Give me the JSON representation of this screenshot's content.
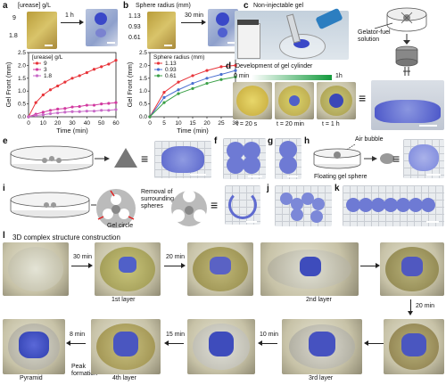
{
  "panels": {
    "a": "a",
    "b": "b",
    "c": "c",
    "d": "d",
    "e": "e",
    "f": "f",
    "g": "g",
    "h": "h",
    "i": "i",
    "j": "j",
    "k": "k",
    "l": "l"
  },
  "a": {
    "header": "[urease] g/L",
    "vals": [
      "9",
      "1.8"
    ],
    "time": "1 h"
  },
  "b": {
    "header": "Sphere radius (mm)",
    "vals": [
      "1.13",
      "0.93",
      "0.61"
    ],
    "time": "30 min"
  },
  "c": {
    "title": "Non-injectable gel",
    "solution": "Gelator-fuel\nsolution",
    "solution_l1": "Gelator-fuel",
    "solution_l2": "solution"
  },
  "d": {
    "title": "Development of gel cylinder",
    "start": "0 min",
    "end": "1h",
    "t1": "t = 20 s",
    "t2": "t = 20 min",
    "t3": "t = 1 h"
  },
  "h": {
    "air": "Air bubble",
    "floating": "Floating gel sphere"
  },
  "i": {
    "removal_l1": "Removal of",
    "removal_l2": "surrounding",
    "removal_l3": "spheres",
    "circle": "Gel circle"
  },
  "l": {
    "title": "3D complex structure construction",
    "t1": "30 min",
    "t2": "20 min",
    "t3": "20 min",
    "t4": "15 min",
    "t5": "10 min",
    "t6": "8 min",
    "layer1": "1st layer",
    "layer2": "2nd layer",
    "layer3": "3rd layer",
    "layer4": "4th layer",
    "pyramid": "Pyramid",
    "peak1": "Peak",
    "peak2": "formation"
  },
  "equiv": "≡",
  "chart_data": [
    {
      "type": "line",
      "xlabel": "Time (min)",
      "ylabel": "Gel Front (mm)",
      "xlim": [
        0,
        60
      ],
      "ylim": [
        0,
        2.5
      ],
      "xticks": [
        "0",
        "10",
        "20",
        "30",
        "40",
        "50",
        "60"
      ],
      "yticks": [
        "0.0",
        "0.5",
        "1.0",
        "1.5",
        "2.0",
        "2.5"
      ],
      "legend_title": "[urease] g/L",
      "legend_position": "top-left",
      "series": [
        {
          "name": "9",
          "color": "#e8343a",
          "x": [
            0,
            5,
            10,
            15,
            20,
            25,
            30,
            35,
            40,
            45,
            50,
            55,
            60
          ],
          "y": [
            0,
            0.55,
            0.85,
            1.05,
            1.2,
            1.35,
            1.5,
            1.6,
            1.72,
            1.85,
            1.95,
            2.05,
            2.2
          ]
        },
        {
          "name": "3",
          "color": "#d23aa0",
          "x": [
            0,
            5,
            10,
            15,
            20,
            25,
            30,
            35,
            40,
            45,
            50,
            55,
            60
          ],
          "y": [
            0,
            0.1,
            0.18,
            0.25,
            0.3,
            0.32,
            0.38,
            0.4,
            0.45,
            0.45,
            0.5,
            0.52,
            0.55
          ]
        },
        {
          "name": "1.8",
          "color": "#c86ac8",
          "x": [
            0,
            5,
            10,
            15,
            20,
            25,
            30,
            35,
            40,
            45,
            50,
            55,
            60
          ],
          "y": [
            0,
            0.05,
            0.08,
            0.12,
            0.15,
            0.18,
            0.2,
            0.2,
            0.22,
            0.22,
            0.25,
            0.25,
            0.28
          ]
        }
      ]
    },
    {
      "type": "line",
      "xlabel": "Time (min)",
      "ylabel": "Gel Front (mm)",
      "xlim": [
        0,
        30
      ],
      "ylim": [
        0,
        2.5
      ],
      "xticks": [
        "0",
        "5",
        "10",
        "15",
        "20",
        "25",
        "30"
      ],
      "yticks": [
        "0.0",
        "0.5",
        "1.0",
        "1.5",
        "2.0",
        "2.5"
      ],
      "legend_title": "Sphere radius (mm)",
      "legend_position": "top-left",
      "series": [
        {
          "name": "1.13",
          "color": "#e8343a",
          "x": [
            0,
            5,
            10,
            15,
            20,
            25,
            30
          ],
          "y": [
            0,
            0.95,
            1.35,
            1.6,
            1.8,
            1.95,
            2.0
          ]
        },
        {
          "name": "0.93",
          "color": "#4a6fd0",
          "x": [
            0,
            5,
            10,
            15,
            20,
            25,
            30
          ],
          "y": [
            0,
            0.75,
            1.05,
            1.3,
            1.5,
            1.65,
            1.8
          ]
        },
        {
          "name": "0.61",
          "color": "#3aa047",
          "x": [
            0,
            5,
            10,
            15,
            20,
            25,
            30
          ],
          "y": [
            0,
            0.55,
            0.9,
            1.1,
            1.3,
            1.45,
            1.55
          ]
        }
      ]
    }
  ]
}
